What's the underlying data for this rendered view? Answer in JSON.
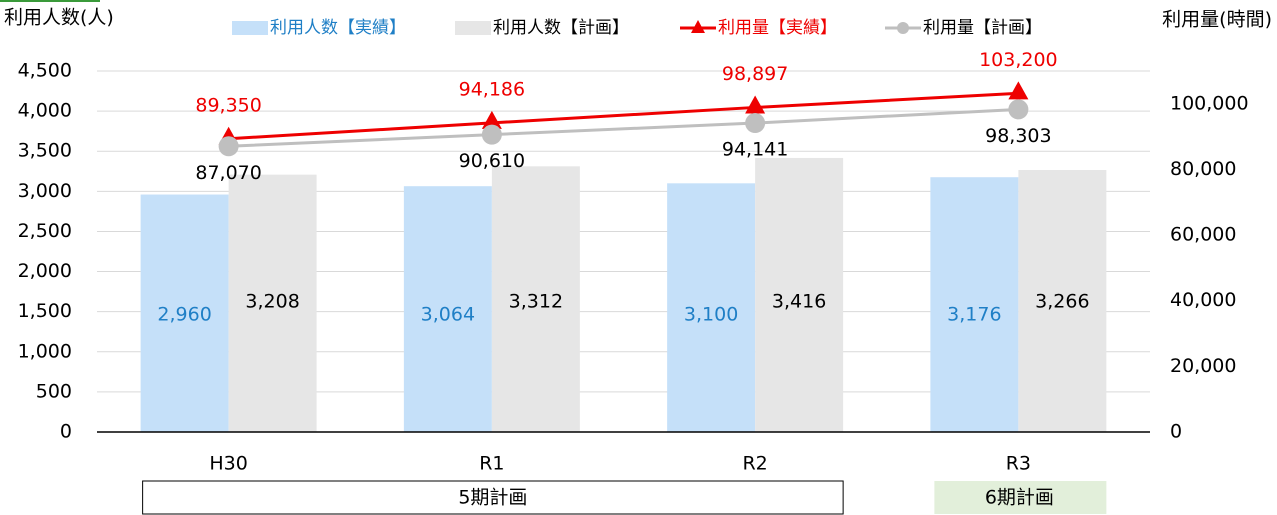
{
  "chart_data": {
    "type": "bar_line",
    "y_label": "利用人数(人)",
    "y2_label": "利用量(時間)",
    "categories": [
      "H30",
      "R1",
      "R2",
      "R3"
    ],
    "series": [
      {
        "name": "利用人数【実績】",
        "type": "bar",
        "color": "#c5e0f9",
        "label_color": "#1f7fc6",
        "values": [
          2960,
          3064,
          3100,
          3176
        ],
        "value_labels": [
          "2,960",
          "3,064",
          "3,100",
          "3,176"
        ]
      },
      {
        "name": "利用人数【計画】",
        "type": "bar",
        "color": "#e6e6e6",
        "label_color": "#000000",
        "values": [
          3208,
          3312,
          3416,
          3266
        ],
        "value_labels": [
          "3,208",
          "3,312",
          "3,416",
          "3,266"
        ]
      },
      {
        "name": "利用量【実績】",
        "type": "line",
        "axis": "y2",
        "color": "#ee0000",
        "label_color": "#ee0000",
        "marker": "triangle",
        "values": [
          89350,
          94186,
          98897,
          103200
        ],
        "value_labels": [
          "89,350",
          "94,186",
          "98,897",
          "103,200"
        ]
      },
      {
        "name": "利用量【計画】",
        "type": "line",
        "axis": "y2",
        "color": "#bfbfbf",
        "label_color": "#000000",
        "marker": "circle",
        "values": [
          87070,
          90610,
          94141,
          98303
        ],
        "value_labels": [
          "87,070",
          "90,610",
          "94,141",
          "98,303"
        ]
      }
    ],
    "ylim": [
      0,
      4500
    ],
    "yticks": [
      0,
      500,
      {
        "value": 1000,
        "label": "1,000"
      },
      {
        "value": 1500,
        "label": "1,500"
      },
      {
        "value": 2000,
        "label": "2,000"
      },
      {
        "value": 2500,
        "label": "2,500"
      },
      {
        "value": 3000,
        "label": "3,000"
      },
      {
        "value": 3500,
        "label": "3,500"
      },
      {
        "value": 4000,
        "label": "4,000"
      },
      {
        "value": 4500,
        "label": "4,500"
      }
    ],
    "y2lim": [
      0,
      110000
    ],
    "y2ticks": [
      0,
      {
        "value": 20000,
        "label": "20,000"
      },
      {
        "value": 40000,
        "label": "40,000"
      },
      {
        "value": 60000,
        "label": "60,000"
      },
      {
        "value": 80000,
        "label": "80,000"
      },
      {
        "value": 100000,
        "label": "100,000"
      }
    ],
    "grid": true,
    "legend": "top",
    "periods": [
      {
        "label": "5期計画",
        "start": 0,
        "end": 2,
        "color": "#ffffff"
      },
      {
        "label": "6期計画",
        "start": 3,
        "end": 3,
        "color": "#e2efda"
      }
    ]
  }
}
